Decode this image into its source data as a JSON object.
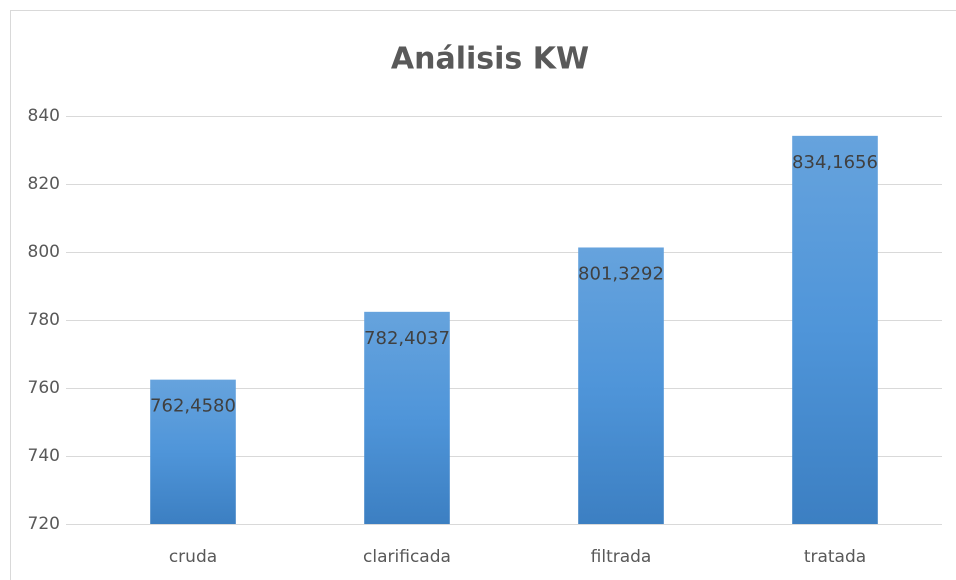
{
  "chart_data": {
    "type": "bar",
    "title": "Análisis KW",
    "categories": [
      "cruda",
      "clarificada",
      "filtrada",
      "tratada"
    ],
    "values": [
      762.458,
      782.4037,
      801.3292,
      834.1656
    ],
    "value_labels": [
      "762,4580",
      "782,4037",
      "801,3292",
      "834,1656"
    ],
    "color": "#5b9bd5",
    "ylim": [
      720,
      840
    ],
    "yticks": [
      720,
      740,
      760,
      780,
      800,
      820,
      840
    ],
    "grid": true
  }
}
